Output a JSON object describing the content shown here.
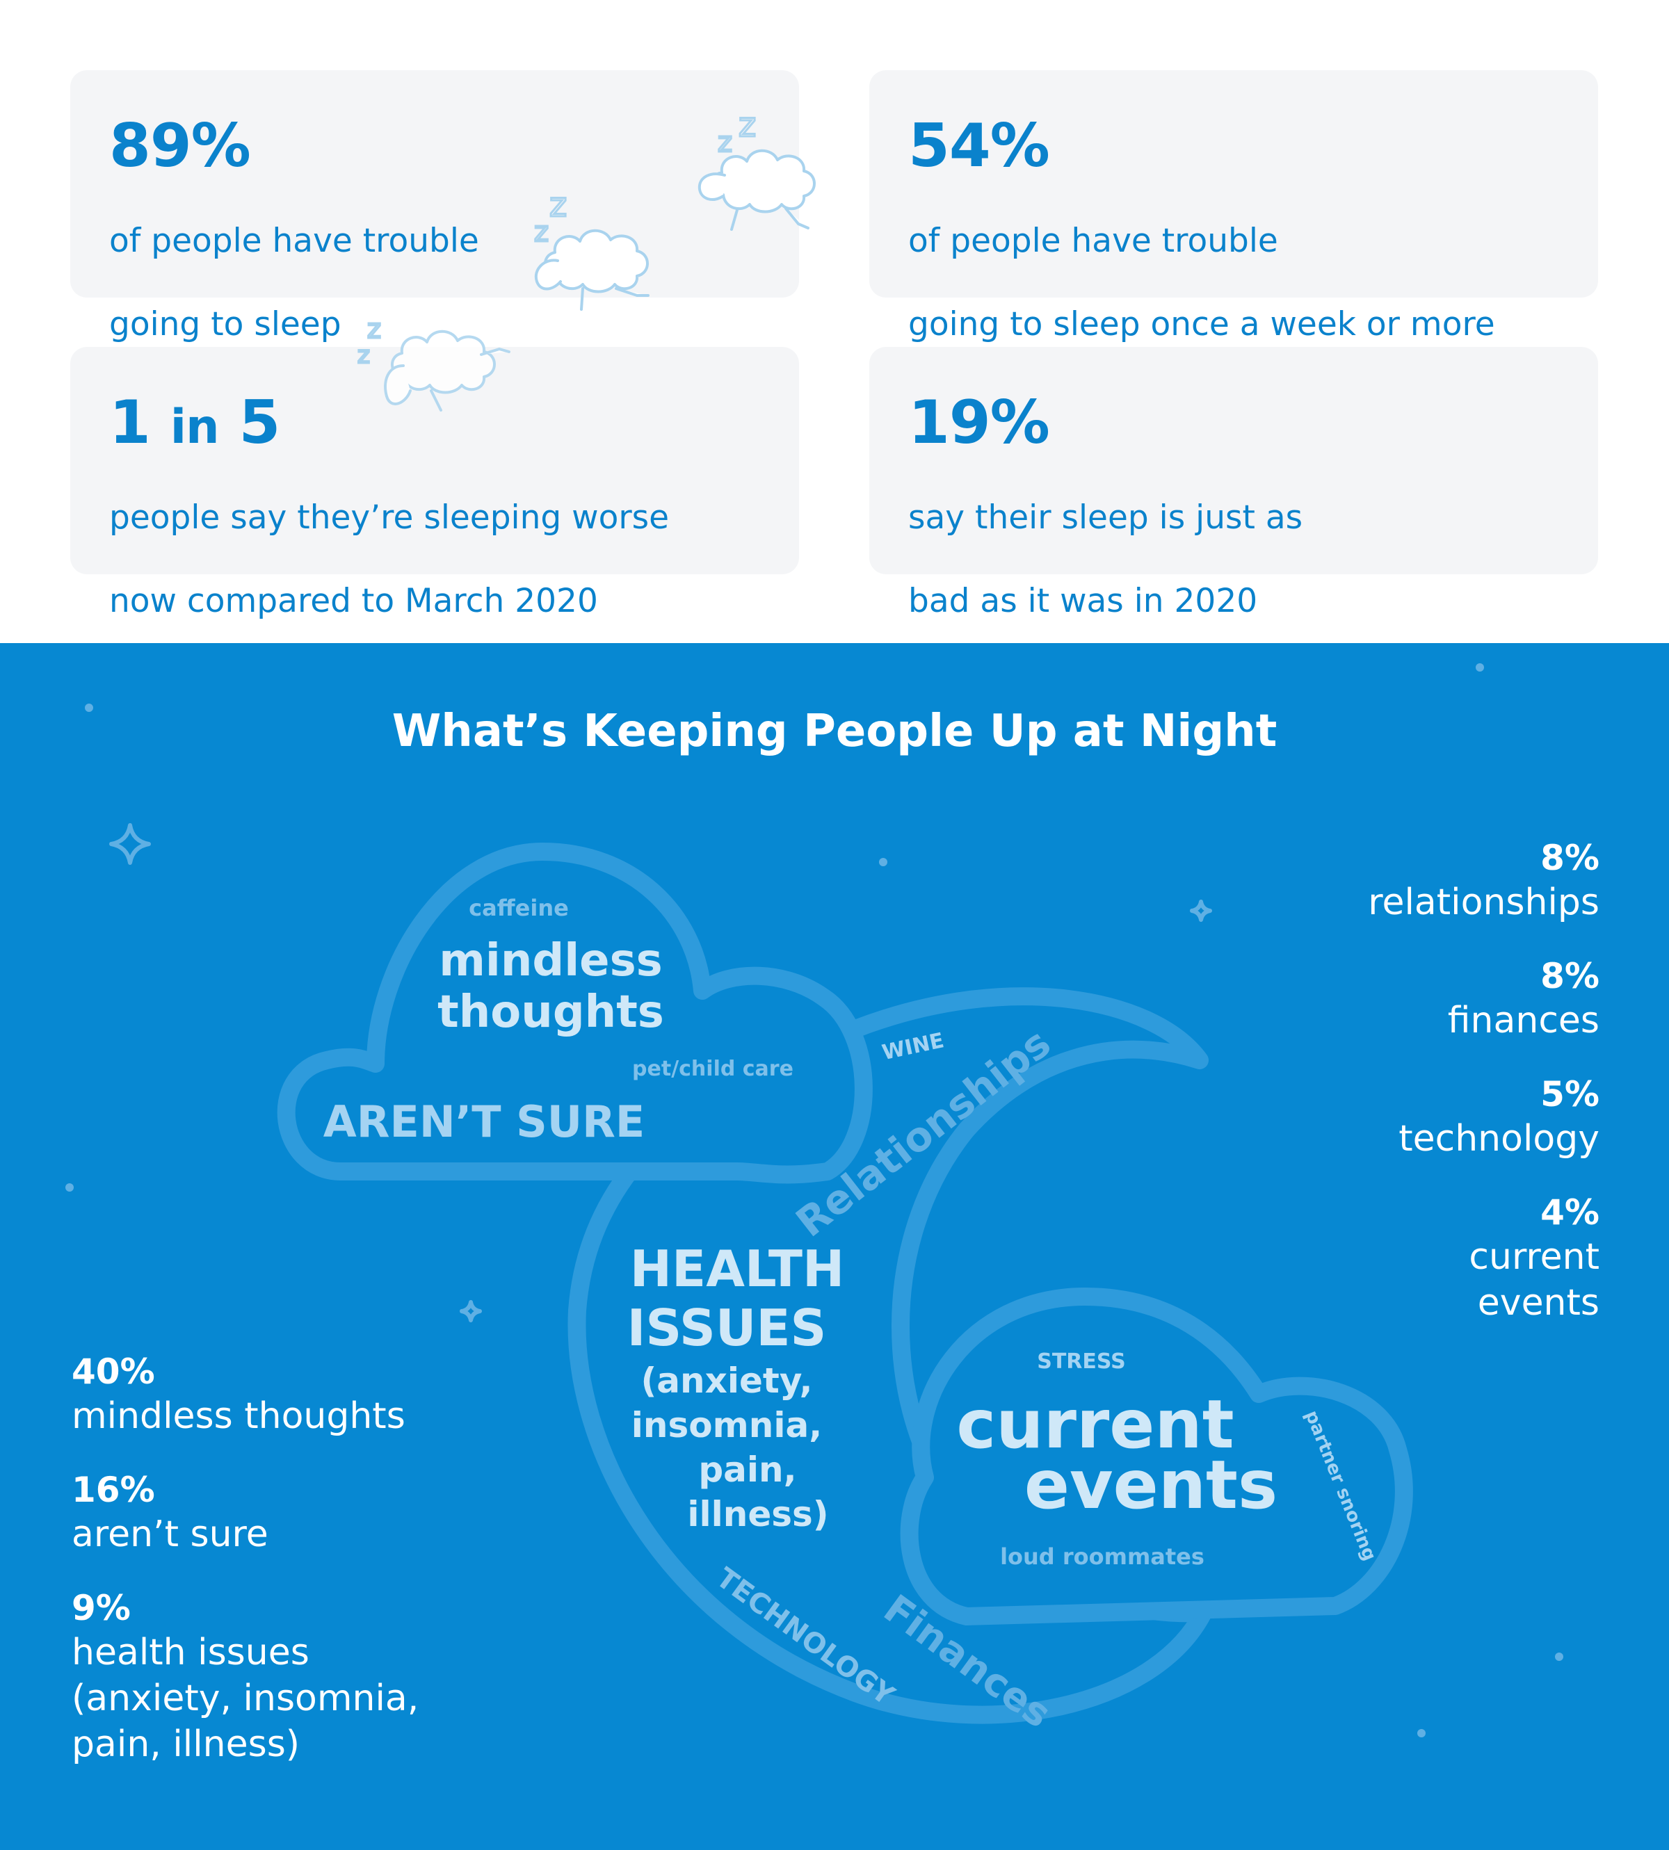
{
  "cards": [
    {
      "big": "89%",
      "desc": [
        "of people have trouble",
        "going to sleep"
      ]
    },
    {
      "big": "54%",
      "desc": [
        "of people have trouble",
        "going to sleep once a week or more"
      ]
    },
    {
      "big_num_a": "1",
      "big_in": "in",
      "big_num_b": "5",
      "desc": [
        "people say they’re sleeping worse",
        "now compared to March 2020"
      ]
    },
    {
      "big": "19%",
      "desc": [
        "say their sleep is just as",
        "bad as it was in 2020"
      ]
    }
  ],
  "section": {
    "title": "What’s Keeping People Up at Night"
  },
  "words": {
    "caffeine": "caffeine",
    "mindless1": "mindless",
    "mindless2": "thoughts",
    "petcare": "pet/child care",
    "arent_sure": "AREN’T SURE",
    "wine": "WINE",
    "relationships": "Relationships",
    "health1": "HEALTH",
    "health2": "ISSUES",
    "health3": "(anxiety,",
    "health4": "insomnia,",
    "health5": "pain,",
    "health6": "illness)",
    "stress": "STRESS",
    "current1": "current",
    "current2": "events",
    "partner": "partner snoring",
    "roommates": "loud roommates",
    "technology": "TECHNOLOGY",
    "finances": "Finances",
    "zz": "z z"
  },
  "right_stats": [
    {
      "pct": "8%",
      "label": [
        "relationships"
      ]
    },
    {
      "pct": "8%",
      "label": [
        "finances"
      ]
    },
    {
      "pct": "5%",
      "label": [
        "technology"
      ]
    },
    {
      "pct": "4%",
      "label": [
        "current",
        "events"
      ]
    }
  ],
  "left_stats": [
    {
      "pct": "40%",
      "label": [
        "mindless thoughts"
      ]
    },
    {
      "pct": "16%",
      "label": [
        "aren’t sure"
      ]
    },
    {
      "pct": "9%",
      "label": [
        "health issues",
        "(anxiety, insomnia,",
        "pain, illness)"
      ]
    }
  ],
  "colors": {
    "brand_blue": "#0a82cc",
    "section_bg": "#0788d2",
    "card_bg": "#f4f5f7",
    "word_light": "#cfe8f8",
    "word_faint": "#7fc0ea",
    "sheep_stroke": "#a9d3ee"
  }
}
